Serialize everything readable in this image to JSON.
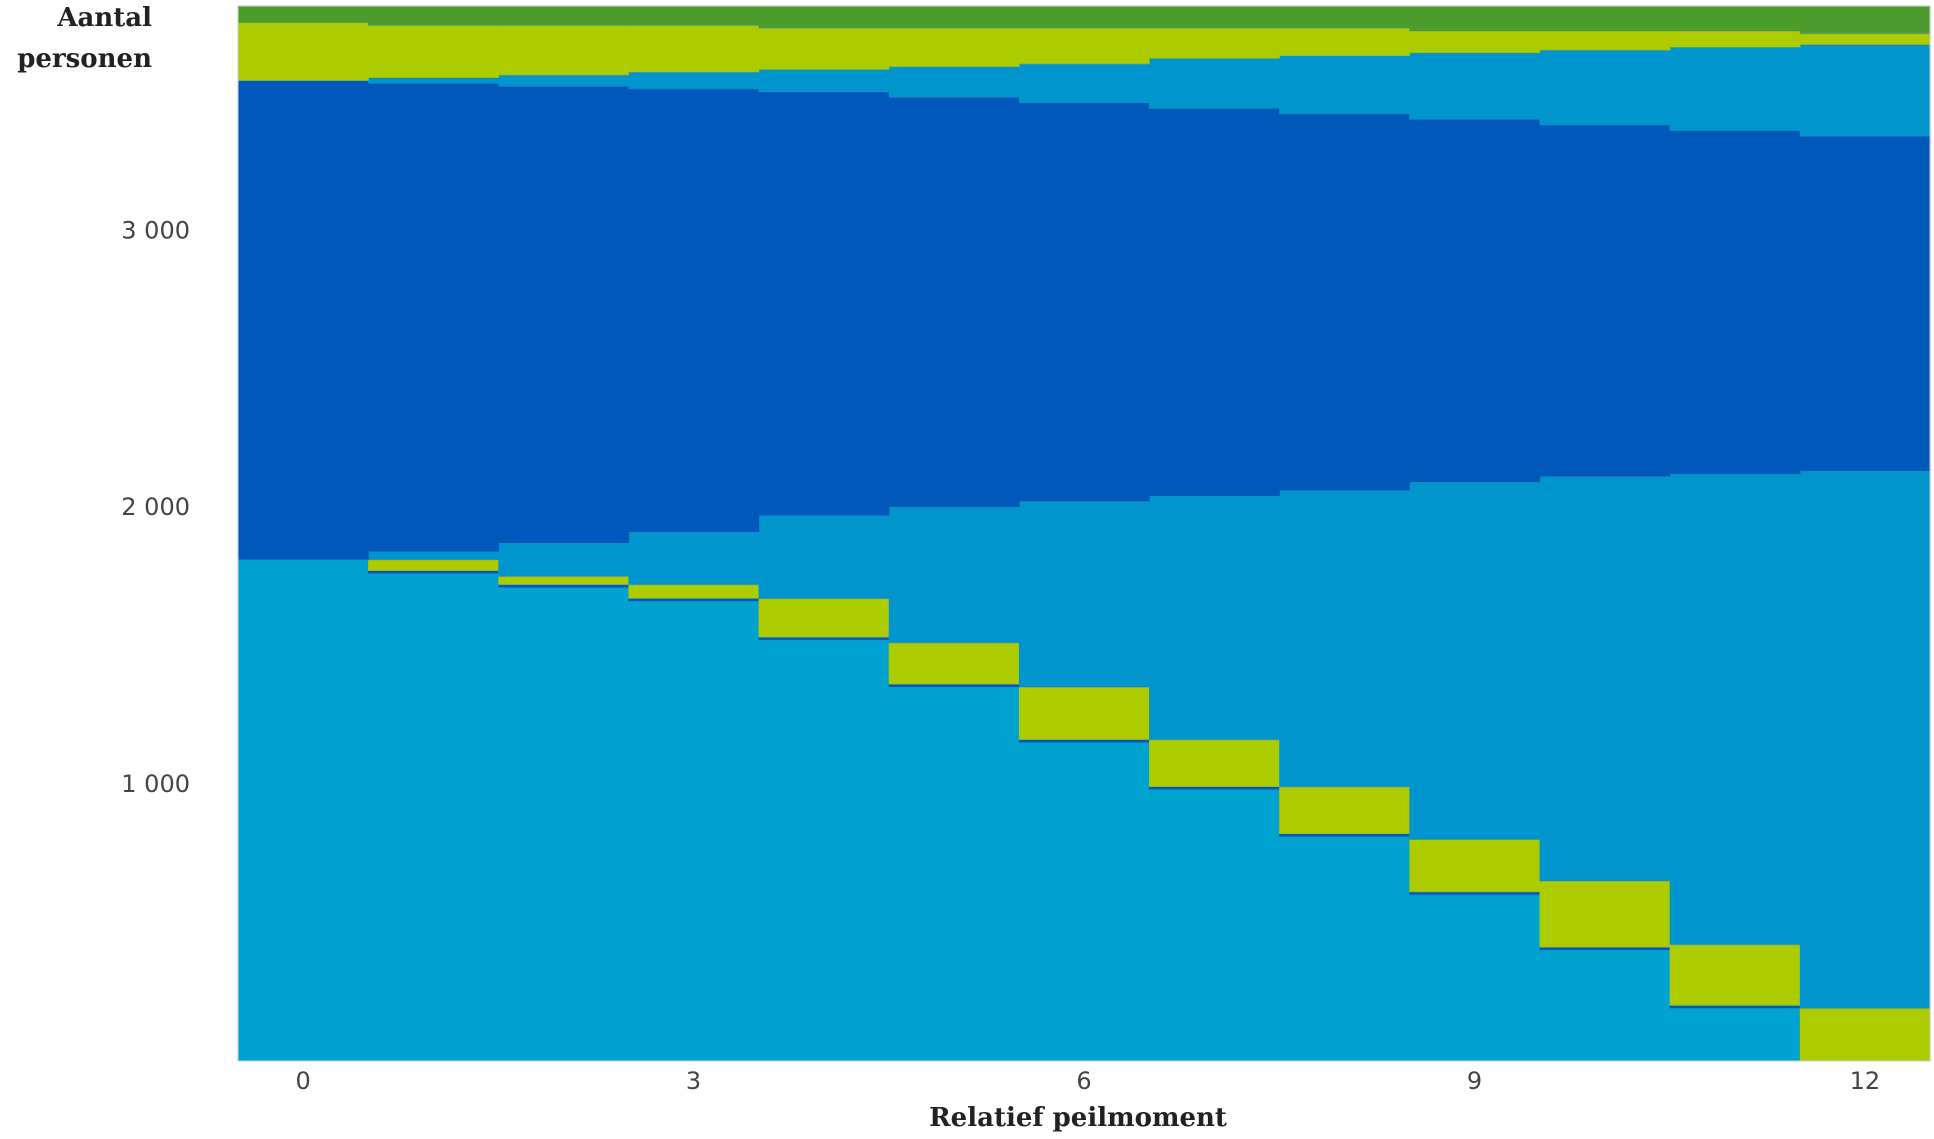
{
  "chart_data": {
    "type": "area",
    "title": "",
    "xlabel": "Relatief peilmoment",
    "ylabel_lines": [
      "Aantal",
      "personen"
    ],
    "x_ticks": [
      0,
      3,
      6,
      9,
      12
    ],
    "y_ticks": [
      1000,
      2000,
      3000
    ],
    "y_tick_labels": [
      "1 000",
      "2 000",
      "3 000"
    ],
    "xlim": [
      -0.5,
      12.5
    ],
    "ylim": [
      0,
      3810
    ],
    "grid": false,
    "legend": "none",
    "colors": {
      "light_blue": "#00a3d0",
      "dark_blue": "#0059ba",
      "lime": "#adcc00",
      "green": "#4c9c2e",
      "mid_blue": "#0095cc"
    },
    "x": [
      0,
      1,
      2,
      3,
      4,
      5,
      6,
      7,
      8,
      9,
      10,
      11,
      12
    ],
    "bands": [
      {
        "color": "light_blue",
        "ranges": [
          [
            0,
            1810
          ],
          [
            0,
            1760
          ],
          [
            0,
            1710
          ],
          [
            0,
            1660
          ],
          [
            0,
            1520
          ],
          [
            0,
            1350
          ],
          [
            0,
            1150
          ],
          [
            0,
            980
          ],
          [
            0,
            810
          ],
          [
            0,
            600
          ],
          [
            0,
            400
          ],
          [
            0,
            190
          ],
          [
            0,
            0
          ]
        ]
      },
      {
        "color": "dark_blue",
        "ranges": [
          [
            0,
            0
          ],
          [
            1760,
            1770
          ],
          [
            1710,
            1720
          ],
          [
            1660,
            1670
          ],
          [
            1520,
            1530
          ],
          [
            1350,
            1360
          ],
          [
            1150,
            1160
          ],
          [
            980,
            990
          ],
          [
            810,
            820
          ],
          [
            600,
            610
          ],
          [
            400,
            410
          ],
          [
            190,
            200
          ],
          [
            0,
            0
          ]
        ]
      },
      {
        "color": "lime",
        "ranges": [
          [
            0,
            0
          ],
          [
            1770,
            1810
          ],
          [
            1720,
            1750
          ],
          [
            1670,
            1720
          ],
          [
            1530,
            1670
          ],
          [
            1360,
            1510
          ],
          [
            1160,
            1350
          ],
          [
            990,
            1160
          ],
          [
            820,
            990
          ],
          [
            610,
            800
          ],
          [
            410,
            650
          ],
          [
            200,
            420
          ],
          [
            0,
            190
          ]
        ]
      },
      {
        "color": "mid_blue",
        "ranges": [
          [
            0,
            0
          ],
          [
            1810,
            1840
          ],
          [
            1750,
            1870
          ],
          [
            1720,
            1910
          ],
          [
            1670,
            1970
          ],
          [
            1510,
            2000
          ],
          [
            1350,
            2020
          ],
          [
            1160,
            2040
          ],
          [
            990,
            2060
          ],
          [
            800,
            2090
          ],
          [
            650,
            2110
          ],
          [
            420,
            2120
          ],
          [
            190,
            2130
          ]
        ]
      },
      {
        "color": "dark_blue",
        "ranges": [
          [
            1810,
            3540
          ],
          [
            1840,
            3530
          ],
          [
            1870,
            3520
          ],
          [
            1910,
            3510
          ],
          [
            1970,
            3500
          ],
          [
            2000,
            3480
          ],
          [
            2020,
            3460
          ],
          [
            2040,
            3440
          ],
          [
            2060,
            3420
          ],
          [
            2090,
            3400
          ],
          [
            2110,
            3380
          ],
          [
            2120,
            3360
          ],
          [
            2130,
            3340
          ]
        ]
      },
      {
        "color": "mid_blue",
        "ranges": [
          [
            0,
            0
          ],
          [
            3530,
            3550
          ],
          [
            3520,
            3560
          ],
          [
            3510,
            3570
          ],
          [
            3500,
            3580
          ],
          [
            3480,
            3590
          ],
          [
            3460,
            3600
          ],
          [
            3440,
            3620
          ],
          [
            3420,
            3630
          ],
          [
            3400,
            3640
          ],
          [
            3380,
            3650
          ],
          [
            3360,
            3660
          ],
          [
            3340,
            3670
          ]
        ]
      },
      {
        "color": "lime",
        "ranges": [
          [
            3540,
            3750
          ],
          [
            3550,
            3740
          ],
          [
            3560,
            3740
          ],
          [
            3570,
            3740
          ],
          [
            3580,
            3730
          ],
          [
            3590,
            3730
          ],
          [
            3600,
            3730
          ],
          [
            3620,
            3730
          ],
          [
            3630,
            3730
          ],
          [
            3640,
            3720
          ],
          [
            3650,
            3720
          ],
          [
            3660,
            3720
          ],
          [
            3670,
            3710
          ]
        ]
      },
      {
        "color": "green",
        "ranges": [
          [
            3750,
            3810
          ],
          [
            3740,
            3810
          ],
          [
            3740,
            3810
          ],
          [
            3740,
            3810
          ],
          [
            3730,
            3810
          ],
          [
            3730,
            3810
          ],
          [
            3730,
            3810
          ],
          [
            3730,
            3810
          ],
          [
            3730,
            3810
          ],
          [
            3720,
            3810
          ],
          [
            3720,
            3810
          ],
          [
            3720,
            3810
          ],
          [
            3710,
            3810
          ]
        ]
      }
    ]
  }
}
